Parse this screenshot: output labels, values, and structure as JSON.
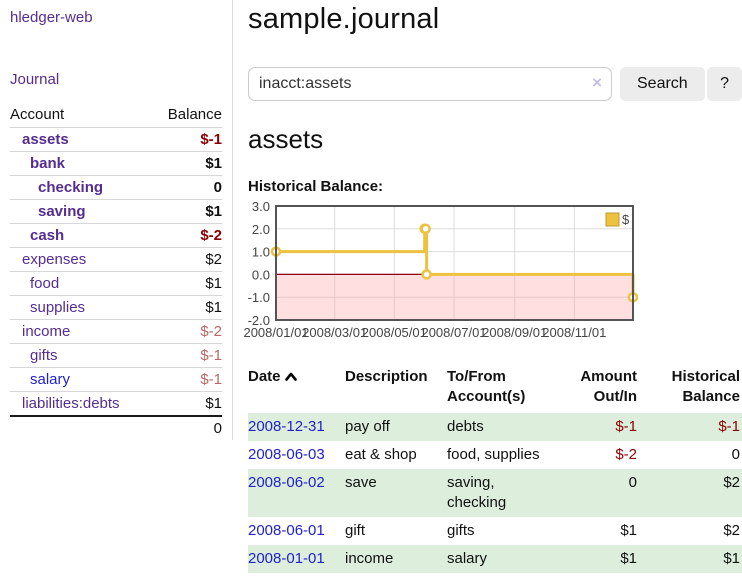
{
  "app": {
    "title": "hledger-web"
  },
  "sidebar": {
    "nav": [
      {
        "label": "Journal"
      }
    ],
    "accounts_table": {
      "headers": [
        "Account",
        "Balance"
      ],
      "rows": [
        {
          "name": "assets",
          "balance": "$-1",
          "indent": 1,
          "bold": true,
          "balance_style": "neg"
        },
        {
          "name": "bank",
          "balance": "$1",
          "indent": 2,
          "bold": true,
          "balance_style": "normal"
        },
        {
          "name": "checking",
          "balance": "0",
          "indent": 3,
          "bold": true,
          "balance_style": "normal"
        },
        {
          "name": "saving",
          "balance": "$1",
          "indent": 3,
          "bold": true,
          "balance_style": "normal"
        },
        {
          "name": "cash",
          "balance": "$-2",
          "indent": 2,
          "bold": true,
          "balance_style": "neg"
        },
        {
          "name": "expenses",
          "balance": "$2",
          "indent": 1,
          "bold": false,
          "balance_style": "normal"
        },
        {
          "name": "food",
          "balance": "$1",
          "indent": 2,
          "bold": false,
          "balance_style": "normal"
        },
        {
          "name": "supplies",
          "balance": "$1",
          "indent": 2,
          "bold": false,
          "balance_style": "normal"
        },
        {
          "name": "income",
          "balance": "$-2",
          "indent": 1,
          "bold": false,
          "balance_style": "neg-soft"
        },
        {
          "name": "gifts",
          "balance": "$-1",
          "indent": 2,
          "bold": false,
          "balance_style": "neg-soft"
        },
        {
          "name": "salary",
          "balance": "$-1",
          "indent": 2,
          "bold": false,
          "balance_style": "neg-soft",
          "link_color": "blue"
        },
        {
          "name": "liabilities:debts",
          "balance": "$1",
          "indent": 1,
          "bold": false,
          "balance_style": "normal"
        }
      ],
      "total": "0"
    }
  },
  "main": {
    "title": "sample.journal",
    "search": {
      "value": "inacct:assets",
      "clear_label": "×",
      "button": "Search",
      "help_button": "?"
    },
    "account_heading": "assets",
    "chart_heading": "Historical Balance:"
  },
  "chart_data": {
    "type": "line",
    "title": "Historical Balance",
    "legend": [
      {
        "label": "$",
        "color": "#edc240"
      }
    ],
    "legend_position": "top-right",
    "grid": true,
    "step": true,
    "x_start": "2008-01-01",
    "xlim_days": [
      0,
      365
    ],
    "ylim": [
      -2,
      3
    ],
    "x_ticks": [
      {
        "days": 0,
        "label": "2008/01/01"
      },
      {
        "days": 60,
        "label": "2008/03/01"
      },
      {
        "days": 121,
        "label": "2008/05/01"
      },
      {
        "days": 182,
        "label": "2008/07/01"
      },
      {
        "days": 244,
        "label": "2008/09/01"
      },
      {
        "days": 305,
        "label": "2008/11/01"
      }
    ],
    "y_ticks": [
      {
        "v": 3,
        "label": "3.0"
      },
      {
        "v": 2,
        "label": "2.0"
      },
      {
        "v": 1,
        "label": "1.0"
      },
      {
        "v": 0,
        "label": "0.0"
      },
      {
        "v": -1,
        "label": "-1.0"
      },
      {
        "v": -2,
        "label": "-2.0"
      }
    ],
    "series": [
      {
        "name": "$",
        "points": [
          [
            "2008-01-01",
            1
          ],
          [
            "2008-06-01",
            2
          ],
          [
            "2008-06-02",
            2
          ],
          [
            "2008-06-03",
            0
          ],
          [
            "2008-12-31",
            -1
          ]
        ]
      }
    ],
    "colors": {
      "line": "#edc240",
      "line_border": "#bf9b2f",
      "marker_fill": "#ffffff",
      "zero_line": "#8b0000",
      "negative_region": "rgba(255,150,150,0.30)",
      "grid_line": "#dddddd",
      "plot_border": "#545454"
    }
  },
  "transactions_table": {
    "headers": {
      "date": "Date",
      "description": "Description",
      "account": "To/From Account(s)",
      "amount": "Amount Out/In",
      "balance": "Historical Balance"
    },
    "sort": "date-ascending",
    "rows": [
      {
        "date": "2008-12-31",
        "description": "pay off",
        "accounts": "debts",
        "amount": "$-1",
        "amount_negative": true,
        "balance": "$-1",
        "balance_negative": true
      },
      {
        "date": "2008-06-03",
        "description": "eat & shop",
        "accounts": "food, supplies",
        "amount": "$-2",
        "amount_negative": true,
        "balance": "0",
        "balance_negative": false
      },
      {
        "date": "2008-06-02",
        "description": "save",
        "accounts": "saving, checking",
        "amount": "0",
        "amount_negative": false,
        "balance": "$2",
        "balance_negative": false
      },
      {
        "date": "2008-06-01",
        "description": "gift",
        "accounts": "gifts",
        "amount": "$1",
        "amount_negative": false,
        "balance": "$2",
        "balance_negative": false
      },
      {
        "date": "2008-01-01",
        "description": "income",
        "accounts": "salary",
        "amount": "$1",
        "amount_negative": false,
        "balance": "$1",
        "balance_negative": false
      }
    ]
  },
  "colors": {
    "link_purple": "#552d90",
    "link_blue": "#2222cc",
    "negative": "#8b0000",
    "negative_soft": "#bb6666",
    "row_stripe_green": "#ddeedd",
    "divider": "#dddddd",
    "button_bg": "#ececec"
  }
}
